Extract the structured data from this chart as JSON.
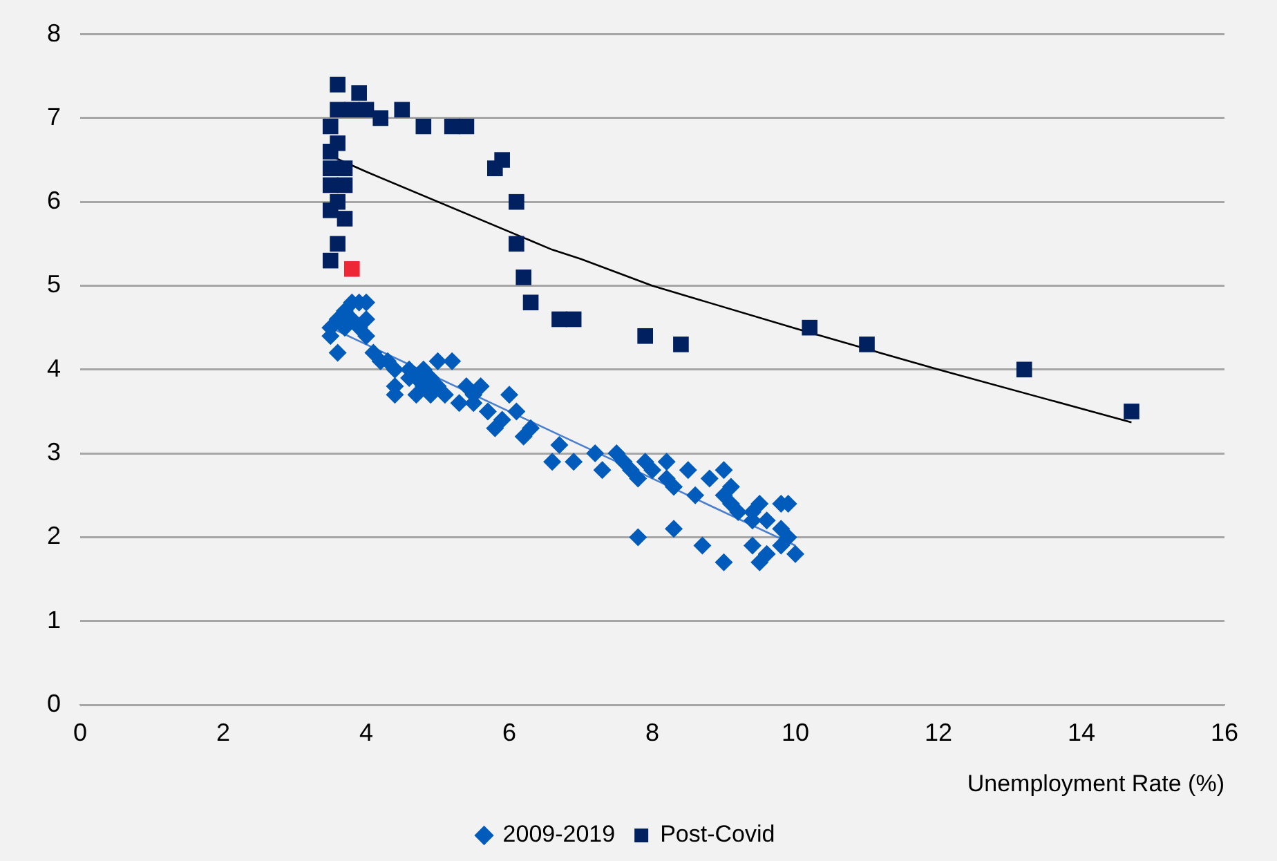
{
  "chart_data": {
    "type": "scatter",
    "xlabel": "Unemployment Rate (%)",
    "xlim": [
      0,
      16
    ],
    "xticks": [
      0,
      2,
      4,
      6,
      8,
      10,
      12,
      14,
      16
    ],
    "ylim": [
      0,
      8
    ],
    "yticks": [
      0,
      1,
      2,
      3,
      4,
      5,
      6,
      7,
      8
    ],
    "grid": "y",
    "legend": "bottom",
    "series": [
      {
        "name": "2009-2019",
        "marker": "diamond",
        "color": "#005bbb",
        "x": [
          3.5,
          3.5,
          3.6,
          3.6,
          3.7,
          3.7,
          3.8,
          3.8,
          3.9,
          3.9,
          4.0,
          4.0,
          4.0,
          4.1,
          4.2,
          4.3,
          4.4,
          4.4,
          4.4,
          4.6,
          4.6,
          4.7,
          4.7,
          4.8,
          4.8,
          4.9,
          4.9,
          5.0,
          5.0,
          5.1,
          5.2,
          5.3,
          5.4,
          5.5,
          5.5,
          5.6,
          5.7,
          5.8,
          5.9,
          6.0,
          6.1,
          6.2,
          6.3,
          6.6,
          6.7,
          6.9,
          7.2,
          7.3,
          7.5,
          7.6,
          7.7,
          7.8,
          7.8,
          7.9,
          8.0,
          8.2,
          8.2,
          8.3,
          8.3,
          8.5,
          8.6,
          8.7,
          8.8,
          9.0,
          9.0,
          9.0,
          9.1,
          9.1,
          9.2,
          9.4,
          9.4,
          9.4,
          9.5,
          9.5,
          9.6,
          9.6,
          9.8,
          9.8,
          9.9,
          9.9,
          10.0,
          9.8
        ],
        "values": [
          4.4,
          4.5,
          4.6,
          4.2,
          4.7,
          4.5,
          4.8,
          4.6,
          4.8,
          4.5,
          4.8,
          4.6,
          4.4,
          4.2,
          4.1,
          4.1,
          4.0,
          3.8,
          3.7,
          3.9,
          4.0,
          3.7,
          3.9,
          4.0,
          3.8,
          3.9,
          3.7,
          4.1,
          3.8,
          3.7,
          4.1,
          3.6,
          3.8,
          3.7,
          3.6,
          3.8,
          3.5,
          3.3,
          3.4,
          3.7,
          3.5,
          3.2,
          3.3,
          2.9,
          3.1,
          2.9,
          3.0,
          2.8,
          3.0,
          2.9,
          2.8,
          2.0,
          2.7,
          2.9,
          2.8,
          2.9,
          2.7,
          2.6,
          2.1,
          2.8,
          2.5,
          1.9,
          2.7,
          2.8,
          2.5,
          1.7,
          2.4,
          2.6,
          2.3,
          2.3,
          2.2,
          1.9,
          1.7,
          2.4,
          1.8,
          2.2,
          2.1,
          2.4,
          2.4,
          2.0,
          1.8,
          1.9
        ]
      },
      {
        "name": "Post-Covid",
        "marker": "square",
        "color": "#002060",
        "x": [
          3.5,
          3.5,
          3.5,
          3.5,
          3.6,
          3.6,
          3.6,
          3.7,
          3.7,
          3.6,
          3.5,
          3.7,
          3.6,
          3.5,
          3.8,
          3.9,
          4.0,
          4.2,
          4.5,
          4.8,
          5.2,
          5.4,
          5.8,
          5.9,
          6.1,
          6.1,
          6.2,
          6.3,
          6.7,
          6.9,
          7.9,
          8.4,
          10.2,
          11.0,
          13.2,
          14.7
        ],
        "values": [
          6.2,
          6.4,
          6.6,
          6.9,
          7.4,
          7.1,
          6.7,
          6.4,
          6.2,
          6.0,
          5.9,
          5.8,
          5.5,
          5.3,
          7.1,
          7.3,
          7.1,
          7.0,
          7.1,
          6.9,
          6.9,
          6.9,
          6.4,
          6.5,
          6.0,
          5.5,
          5.1,
          4.8,
          4.6,
          4.6,
          4.4,
          4.3,
          4.5,
          4.3,
          4.0,
          3.5
        ]
      },
      {
        "marker": "square",
        "color": "#ee2737",
        "x": [
          3.8
        ],
        "values": [
          5.2
        ]
      },
      {
        "type": "line",
        "marker": "none",
        "color": "#4a7fd0",
        "x": [
          3.5,
          10.0
        ],
        "values": [
          4.5,
          1.9
        ]
      },
      {
        "type": "line",
        "marker": "none",
        "color": "#000000",
        "x": [
          3.5,
          4,
          6.6,
          7,
          8,
          10,
          12,
          14.7
        ],
        "values": [
          6.55,
          6.36,
          5.43,
          5.32,
          5.0,
          4.49,
          4.0,
          3.37
        ]
      }
    ]
  }
}
